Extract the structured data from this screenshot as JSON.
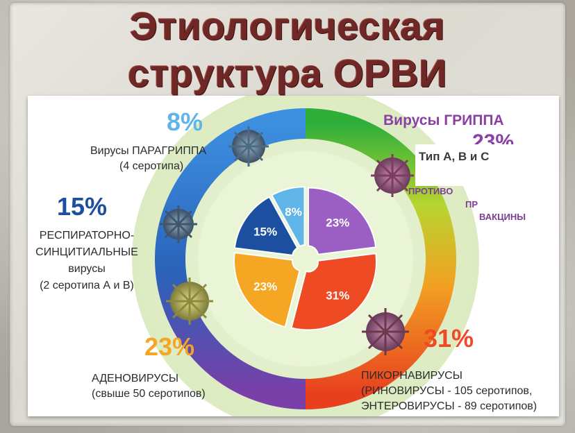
{
  "title_line1": "Этиологическая",
  "title_line2": "структура ОРВИ",
  "chart_data": {
    "type": "pie",
    "slices": [
      {
        "label": "Вирусы ГРИППА",
        "value": 23,
        "value_label": "23%",
        "color": "#9b5fc4"
      },
      {
        "label": "ПИКОРНАВИРУСЫ",
        "value": 31,
        "value_label": "31%",
        "color": "#ee4a24"
      },
      {
        "label": "АДЕНОВИРУСЫ",
        "value": 23,
        "value_label": "23%",
        "color": "#f5a623"
      },
      {
        "label": "РЕСПИРАТОРНО-СИНЦИТИАЛЬНЫЕ вирусы",
        "value": 15,
        "value_label": "15%",
        "color": "#1c4fa0"
      },
      {
        "label": "Вирусы ПАРАГРИППА",
        "value": 8,
        "value_label": "8%",
        "color": "#5fb4e8"
      }
    ]
  },
  "groups": {
    "parainfluenza": {
      "pct": "8%",
      "line1": "Вирусы ПАРАГРИППА",
      "line2": "(4 серотипа)"
    },
    "influenza": {
      "pct": "23%",
      "line1": "Вирусы ГРИППА",
      "type": "Тип А, В и С",
      "line2": "ПРОТИВО",
      "line3": "ПР",
      "line4": "ВАКЦИНЫ"
    },
    "rsv": {
      "pct": "15%",
      "line1": "РЕСПИРАТОРНО-",
      "line2": "СИНЦИТИАЛЬНЫЕ",
      "line3": "вирусы",
      "line4": "(2 серотипа А и В)"
    },
    "adeno": {
      "pct": "23%",
      "line1": "АДЕНОВИРУСЫ",
      "line2": "(свыше 50 серотипов)"
    },
    "picorna": {
      "pct": "31%",
      "line1": "ПИКОРНАВИРУСЫ",
      "line2": "(РИНОВИРУСЫ - 105 серотипов,",
      "line3": "ЭНТЕРОВИРУСЫ - 89 серотипов)"
    }
  },
  "colors": {
    "title": "#6e2826",
    "percent_blue": "#1c4fa0",
    "percent_light_blue": "#5fb4e8",
    "percent_orange": "#f5a623",
    "percent_red": "#ee4a24",
    "influenza_purple": "#8a3fa6"
  }
}
